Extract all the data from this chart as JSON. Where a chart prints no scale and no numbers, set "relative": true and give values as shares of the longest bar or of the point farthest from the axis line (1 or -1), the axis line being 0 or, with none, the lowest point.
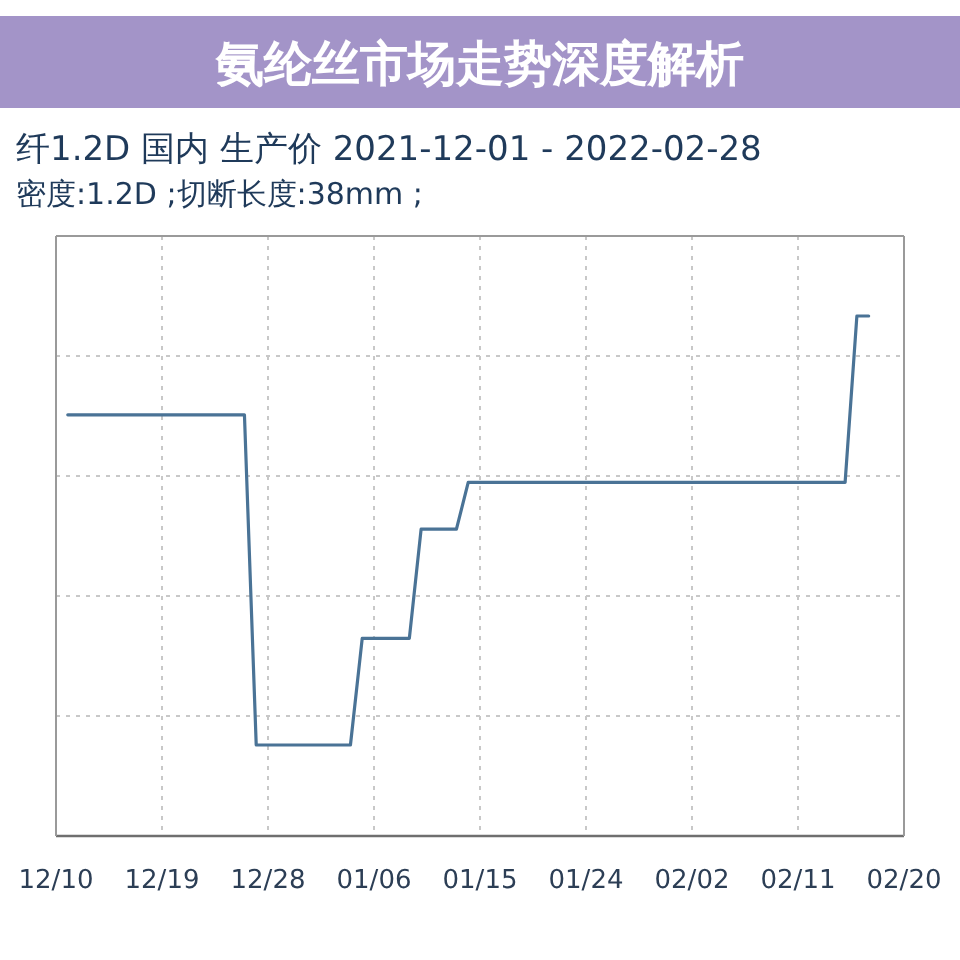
{
  "chart_data": {
    "type": "line",
    "title": "纤1.2D 国内 生产价 2021-12-01 - 2022-02-28",
    "subtitle": "密度:1.2D ;切断长度:38mm ;",
    "annotations": [
      "氨纶丝市场走势深度解析"
    ],
    "x": [
      "2021-12-11",
      "2021-12-26",
      "2021-12-27",
      "2022-01-04",
      "2022-01-05",
      "2022-01-09",
      "2022-01-10",
      "2022-01-13",
      "2022-01-14",
      "2022-02-15",
      "2022-02-16",
      "2022-02-17"
    ],
    "series": [
      {
        "color": "#4a7396",
        "values": [
          0.81,
          0.81,
          0.175,
          0.175,
          0.38,
          0.38,
          0.59,
          0.59,
          0.68,
          0.68,
          1.0,
          1.0
        ]
      }
    ],
    "relative": true,
    "xlim": [
      "2021-12-10",
      "2022-02-20"
    ],
    "xticks": [
      {
        "value": "2021-12-10",
        "label": "12/10"
      },
      {
        "value": "2021-12-19",
        "label": "12/19"
      },
      {
        "value": "2021-12-28",
        "label": "12/28"
      },
      {
        "value": "2022-01-06",
        "label": "01/06"
      },
      {
        "value": "2022-01-15",
        "label": "01/15"
      },
      {
        "value": "2022-01-24",
        "label": "01/24"
      },
      {
        "value": "2022-02-02",
        "label": "02/02"
      },
      {
        "value": "2022-02-11",
        "label": "02/11"
      },
      {
        "value": "2022-02-20",
        "label": "02/20"
      }
    ],
    "grid": true,
    "line_style": "solid"
  }
}
